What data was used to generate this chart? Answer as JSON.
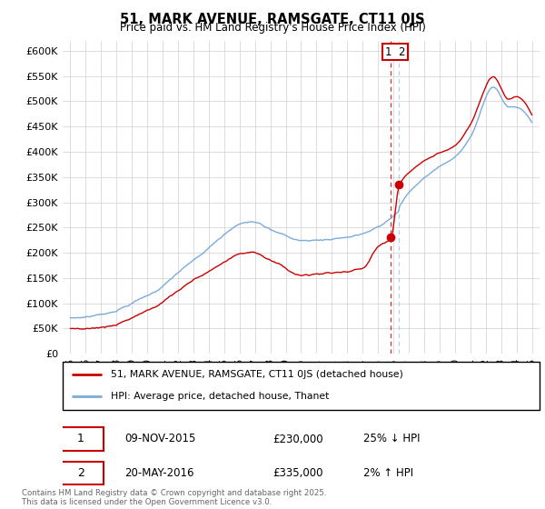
{
  "title": "51, MARK AVENUE, RAMSGATE, CT11 0JS",
  "subtitle": "Price paid vs. HM Land Registry's House Price Index (HPI)",
  "legend_line1": "51, MARK AVENUE, RAMSGATE, CT11 0JS (detached house)",
  "legend_line2": "HPI: Average price, detached house, Thanet",
  "transaction1_date": "09-NOV-2015",
  "transaction1_price": "£230,000",
  "transaction1_hpi": "25% ↓ HPI",
  "transaction2_date": "20-MAY-2016",
  "transaction2_price": "£335,000",
  "transaction2_hpi": "2% ↑ HPI",
  "footnote": "Contains HM Land Registry data © Crown copyright and database right 2025.\nThis data is licensed under the Open Government Licence v3.0.",
  "ylim": [
    0,
    620000
  ],
  "ytick_step": 50000,
  "red_color": "#cc0000",
  "blue_color": "#7aabdb",
  "dashed_red_color": "#cc0000",
  "dashed_blue_color": "#aaccee",
  "year_start": 1995,
  "year_end": 2025,
  "t1_year": 2015.833,
  "t2_year": 2016.375,
  "t1_price": 230000,
  "t2_price": 335000
}
